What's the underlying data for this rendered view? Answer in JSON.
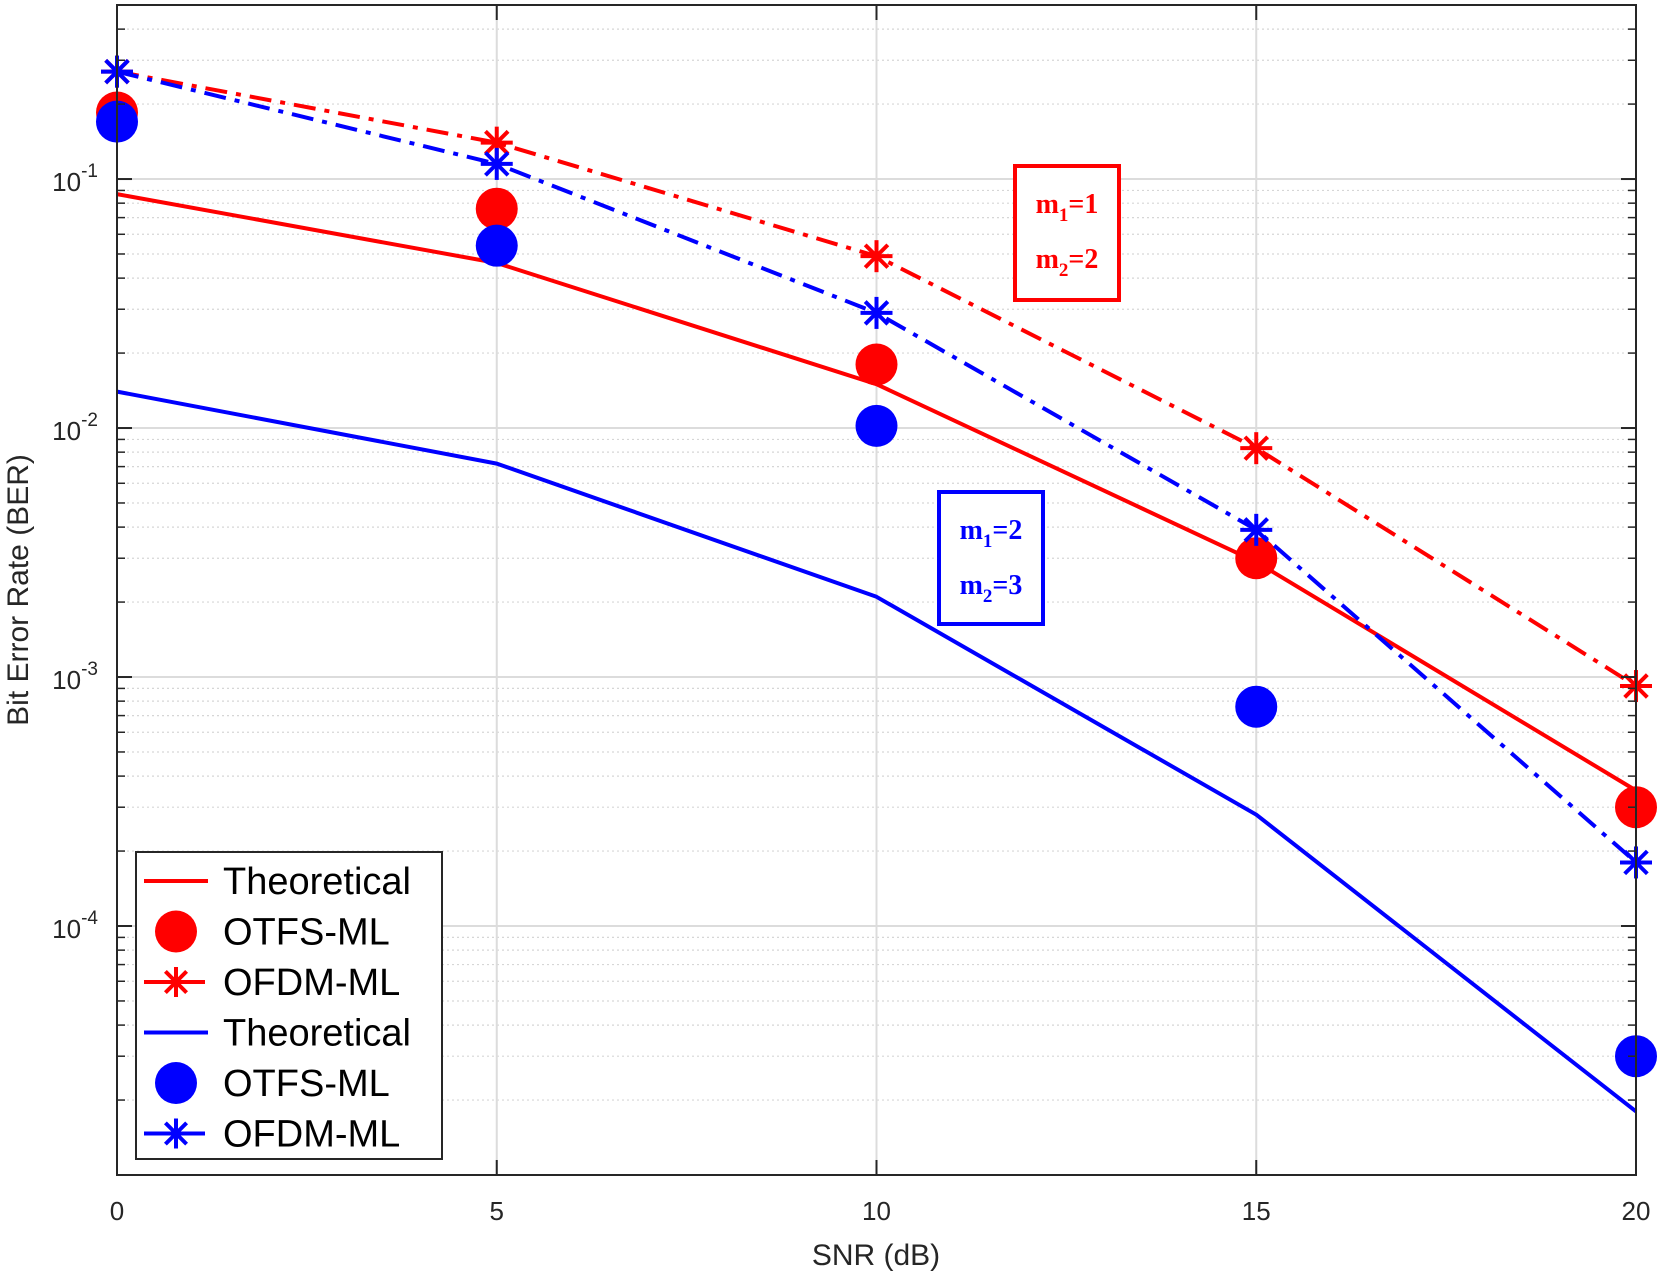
{
  "chart_data": {
    "type": "line",
    "title": "",
    "xlabel": "SNR (dB)",
    "ylabel": "Bit Error Rate (BER)",
    "xscale": "linear",
    "yscale": "log",
    "xlim": [
      0,
      20
    ],
    "ylim": [
      1e-05,
      0.5
    ],
    "xticks": [
      0,
      5,
      10,
      15,
      20
    ],
    "xtick_labels": [
      "0",
      "5",
      "10",
      "15",
      "20"
    ],
    "yticks": [
      {
        "value": 0.1,
        "base": "10",
        "exp": "-1"
      },
      {
        "value": 0.01,
        "base": "10",
        "exp": "-2"
      },
      {
        "value": 0.001,
        "base": "10",
        "exp": "-3"
      },
      {
        "value": 0.0001,
        "base": "10",
        "exp": "-4"
      }
    ],
    "grid": true,
    "legend_position": "bottom-left",
    "x": [
      0,
      5,
      10,
      15,
      20
    ],
    "series": [
      {
        "name": "Theoretical",
        "color": "#ff0000",
        "line": "solid",
        "marker": "none",
        "values": [
          0.087,
          0.046,
          0.015,
          0.0029,
          0.00035
        ]
      },
      {
        "name": "OTFS-ML",
        "color": "#ff0000",
        "line": "none",
        "marker": "circle",
        "values": [
          0.185,
          0.076,
          0.018,
          0.003,
          0.0003
        ]
      },
      {
        "name": "OFDM-ML",
        "color": "#ff0000",
        "line": "dashdot",
        "marker": "asterisk",
        "values": [
          0.27,
          0.14,
          0.049,
          0.0083,
          0.00092
        ]
      },
      {
        "name": "Theoretical",
        "color": "#0000ff",
        "line": "solid",
        "marker": "none",
        "values": [
          0.014,
          0.0072,
          0.0021,
          0.00028,
          1.8e-05
        ]
      },
      {
        "name": "OTFS-ML",
        "color": "#0000ff",
        "line": "none",
        "marker": "circle",
        "values": [
          0.17,
          0.054,
          0.0102,
          0.00076,
          3e-05
        ]
      },
      {
        "name": "OFDM-ML",
        "color": "#0000ff",
        "line": "dashdot",
        "marker": "asterisk",
        "values": [
          0.27,
          0.115,
          0.029,
          0.0039,
          0.00018
        ]
      }
    ],
    "annotations": [
      {
        "color": "#ff0000",
        "lines": [
          {
            "base": "m",
            "sub": "1",
            "rest": "=1"
          },
          {
            "base": "m",
            "sub": "2",
            "rest": "=2"
          }
        ]
      },
      {
        "color": "#0000ff",
        "lines": [
          {
            "base": "m",
            "sub": "1",
            "rest": "=2"
          },
          {
            "base": "m",
            "sub": "2",
            "rest": "=3"
          }
        ]
      }
    ]
  }
}
